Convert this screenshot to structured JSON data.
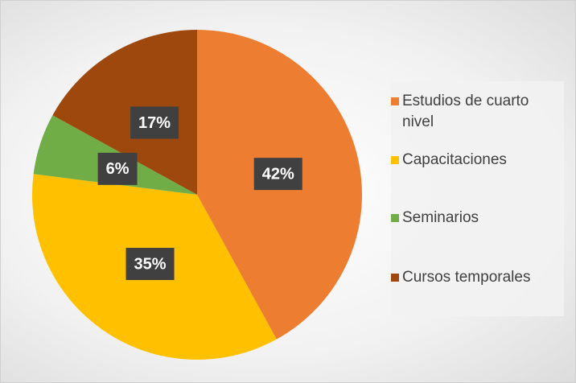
{
  "chart_data": {
    "type": "pie",
    "categories": [
      "Estudios de cuarto nivel",
      "Capacitaciones",
      "Seminarios",
      "Cursos temporales"
    ],
    "values": [
      42,
      35,
      6,
      17
    ],
    "value_labels": [
      "42%",
      "35%",
      "6%",
      "17%"
    ],
    "colors": [
      "#ED7D31",
      "#FFC000",
      "#70AD47",
      "#9E480E"
    ],
    "legend": "right"
  }
}
